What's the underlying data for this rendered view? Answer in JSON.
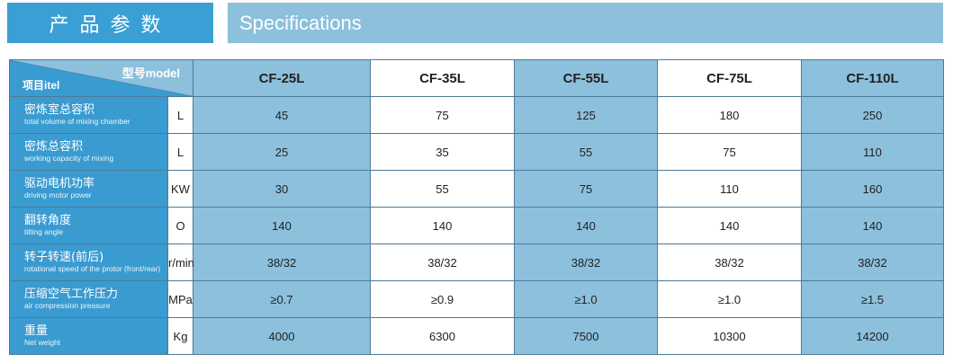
{
  "banner": {
    "title_cn": "产品参数",
    "title_en": "Specifications"
  },
  "table": {
    "corner_model": "型号model",
    "corner_item": "项目itel",
    "models": [
      "CF-25L",
      "CF-35L",
      "CF-55L",
      "CF-75L",
      "CF-110L"
    ],
    "rows": [
      {
        "cn": "密炼室总容积",
        "en": "total volume of mixing chamber",
        "unit": "L",
        "values": [
          "45",
          "75",
          "125",
          "180",
          "250"
        ]
      },
      {
        "cn": "密炼总容积",
        "en": "working capacity of mixing",
        "unit": "L",
        "values": [
          "25",
          "35",
          "55",
          "75",
          "110"
        ]
      },
      {
        "cn": "驱动电机功率",
        "en": "driving motor power",
        "unit": "KW",
        "values": [
          "30",
          "55",
          "75",
          "110",
          "160"
        ]
      },
      {
        "cn": "翻转角度",
        "en": "tilting angle",
        "unit": "O",
        "values": [
          "140",
          "140",
          "140",
          "140",
          "140"
        ]
      },
      {
        "cn": "转子转速(前后)",
        "en": "rotational speed of the protor (front/rear)",
        "unit": "r/min",
        "values": [
          "38/32",
          "38/32",
          "38/32",
          "38/32",
          "38/32"
        ]
      },
      {
        "cn": "压缩空气工作压力",
        "en": "air compression pressure",
        "unit": "MPa",
        "values": [
          "≥0.7",
          "≥0.9",
          "≥1.0",
          "≥1.0",
          "≥1.5"
        ]
      },
      {
        "cn": "重量",
        "en": "Net weight",
        "unit": "Kg",
        "values": [
          "4000",
          "6300",
          "7500",
          "10300",
          "14200"
        ]
      }
    ]
  },
  "colors": {
    "primary": "#3a9fd4",
    "light": "#8cc0dc"
  }
}
